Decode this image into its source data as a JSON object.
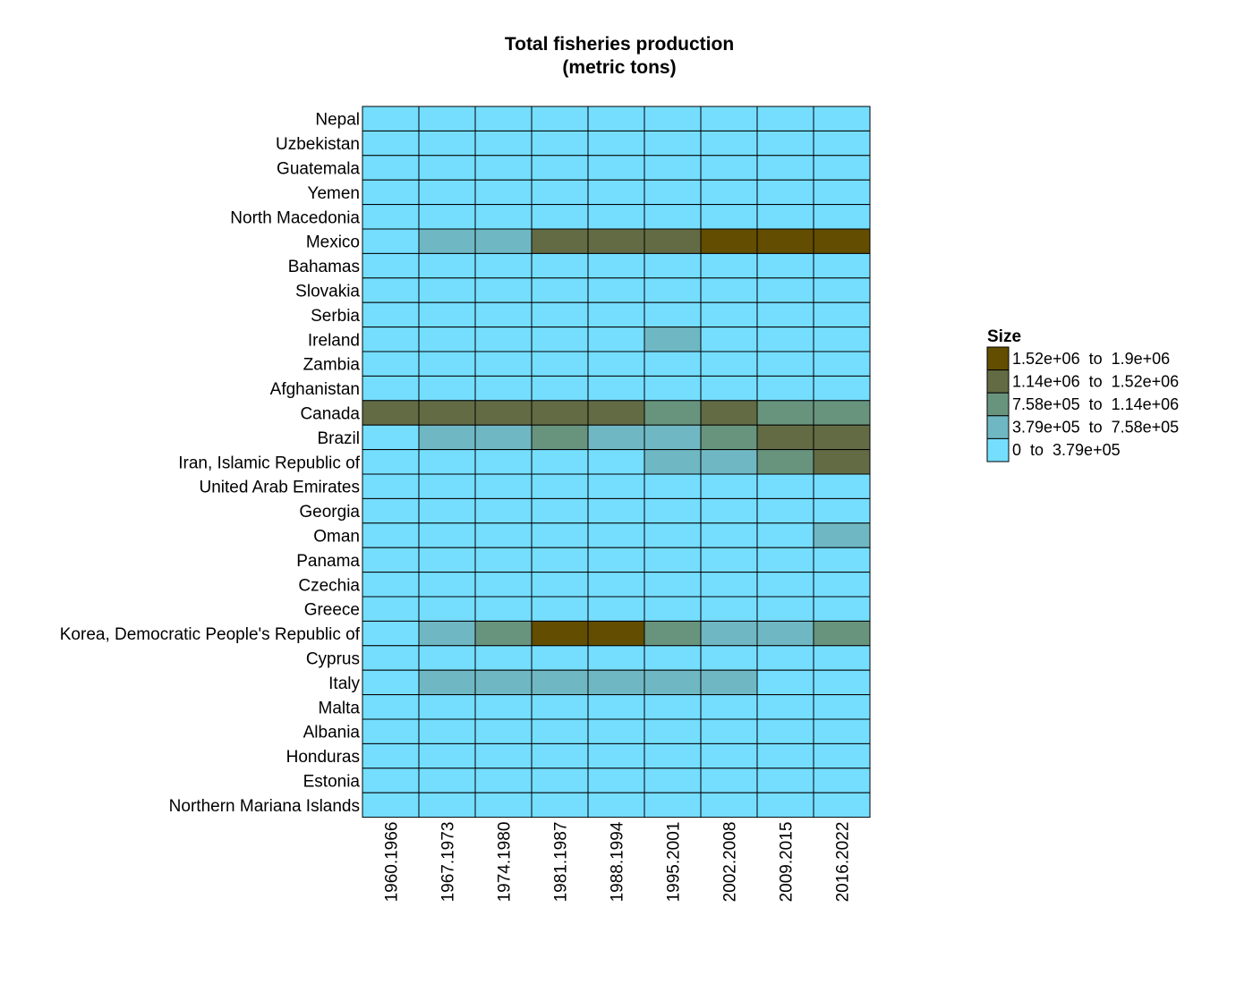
{
  "chart_data": {
    "type": "heatmap",
    "title": "Total fisheries production",
    "subtitle": "(metric tons)",
    "rows": [
      "Nepal",
      "Uzbekistan",
      "Guatemala",
      "Yemen",
      "North Macedonia",
      "Mexico",
      "Bahamas",
      "Slovakia",
      "Serbia",
      "Ireland",
      "Zambia",
      "Afghanistan",
      "Canada",
      "Brazil",
      "Iran, Islamic Republic of",
      "United Arab Emirates",
      "Georgia",
      "Oman",
      "Panama",
      "Czechia",
      "Greece",
      "Korea, Democratic People's Republic of",
      "Cyprus",
      "Italy",
      "Malta",
      "Albania",
      "Honduras",
      "Estonia",
      "Northern Mariana Islands"
    ],
    "columns": [
      "1960.1966",
      "1967.1973",
      "1974.1980",
      "1981.1987",
      "1988.1994",
      "1995.2001",
      "2002.2008",
      "2009.2015",
      "2016.2022"
    ],
    "bin_index_note": "0 = 0 to 3.79e+05, 1 = 3.79e+05 to 7.58e+05, 2 = 7.58e+05 to 1.14e+06, 3 = 1.14e+06 to 1.52e+06, 4 = 1.52e+06 to 1.9e+06",
    "values": [
      [
        0,
        0,
        0,
        0,
        0,
        0,
        0,
        0,
        0
      ],
      [
        0,
        0,
        0,
        0,
        0,
        0,
        0,
        0,
        0
      ],
      [
        0,
        0,
        0,
        0,
        0,
        0,
        0,
        0,
        0
      ],
      [
        0,
        0,
        0,
        0,
        0,
        0,
        0,
        0,
        0
      ],
      [
        0,
        0,
        0,
        0,
        0,
        0,
        0,
        0,
        0
      ],
      [
        0,
        1,
        1,
        3,
        3,
        3,
        4,
        4,
        4
      ],
      [
        0,
        0,
        0,
        0,
        0,
        0,
        0,
        0,
        0
      ],
      [
        0,
        0,
        0,
        0,
        0,
        0,
        0,
        0,
        0
      ],
      [
        0,
        0,
        0,
        0,
        0,
        0,
        0,
        0,
        0
      ],
      [
        0,
        0,
        0,
        0,
        0,
        1,
        0,
        0,
        0
      ],
      [
        0,
        0,
        0,
        0,
        0,
        0,
        0,
        0,
        0
      ],
      [
        0,
        0,
        0,
        0,
        0,
        0,
        0,
        0,
        0
      ],
      [
        3,
        3,
        3,
        3,
        3,
        2,
        3,
        2,
        2
      ],
      [
        0,
        1,
        1,
        2,
        1,
        1,
        2,
        3,
        3
      ],
      [
        0,
        0,
        0,
        0,
        0,
        1,
        1,
        2,
        3
      ],
      [
        0,
        0,
        0,
        0,
        0,
        0,
        0,
        0,
        0
      ],
      [
        0,
        0,
        0,
        0,
        0,
        0,
        0,
        0,
        0
      ],
      [
        0,
        0,
        0,
        0,
        0,
        0,
        0,
        0,
        1
      ],
      [
        0,
        0,
        0,
        0,
        0,
        0,
        0,
        0,
        0
      ],
      [
        0,
        0,
        0,
        0,
        0,
        0,
        0,
        0,
        0
      ],
      [
        0,
        0,
        0,
        0,
        0,
        0,
        0,
        0,
        0
      ],
      [
        0,
        1,
        2,
        4,
        4,
        2,
        1,
        1,
        2
      ],
      [
        0,
        0,
        0,
        0,
        0,
        0,
        0,
        0,
        0
      ],
      [
        0,
        1,
        1,
        1,
        1,
        1,
        1,
        0,
        0
      ],
      [
        0,
        0,
        0,
        0,
        0,
        0,
        0,
        0,
        0
      ],
      [
        0,
        0,
        0,
        0,
        0,
        0,
        0,
        0,
        0
      ],
      [
        0,
        0,
        0,
        0,
        0,
        0,
        0,
        0,
        0
      ],
      [
        0,
        0,
        0,
        0,
        0,
        0,
        0,
        0,
        0
      ],
      [
        0,
        0,
        0,
        0,
        0,
        0,
        0,
        0,
        0
      ]
    ],
    "legend": {
      "title": "Size",
      "placement": "right",
      "bins": [
        {
          "label": "1.52e+06  to  1.9e+06",
          "color": "#634d00",
          "from": 1520000,
          "to": 1900000
        },
        {
          "label": "1.14e+06  to  1.52e+06",
          "color": "#636b44",
          "from": 1140000,
          "to": 1520000
        },
        {
          "label": "7.58e+05  to  1.14e+06",
          "color": "#68947e",
          "from": 758000,
          "to": 1140000
        },
        {
          "label": "3.79e+05  to  7.58e+05",
          "color": "#6fb8c3",
          "from": 379000,
          "to": 758000
        },
        {
          "label": "0  to  3.79e+05",
          "color": "#75deff",
          "from": 0,
          "to": 379000
        }
      ]
    },
    "bin_colors": [
      "#75deff",
      "#6fb8c3",
      "#68947e",
      "#636b44",
      "#634d00"
    ]
  }
}
